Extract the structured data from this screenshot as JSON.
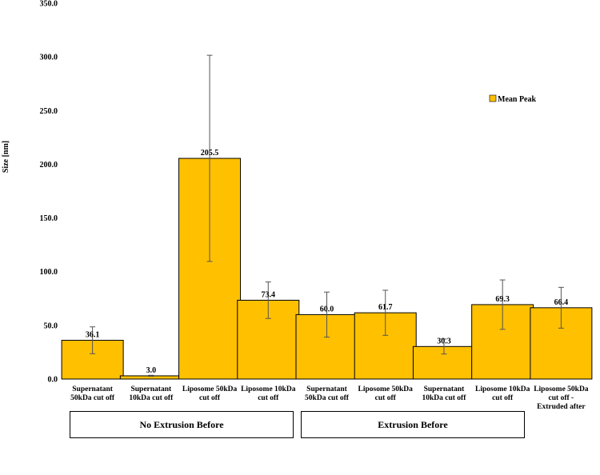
{
  "chart_data": {
    "type": "bar",
    "ylabel": "Size [nm]",
    "ylim": [
      0,
      350
    ],
    "yticks": [
      "0.0",
      "50.0",
      "100.0",
      "150.0",
      "200.0",
      "250.0",
      "300.0",
      "350.0"
    ],
    "categories": [
      [
        "Supernatant",
        "50kDa cut off"
      ],
      [
        "Supernatant",
        "10kDa cut off"
      ],
      [
        "Liposome 50kDa",
        "cut off"
      ],
      [
        "Liposome 10kDa",
        "cut off"
      ],
      [
        "Supernatant",
        "50kDa cut off"
      ],
      [
        "Liposome 50kDa",
        "cut off"
      ],
      [
        "Supernatant",
        "10kDa cut off"
      ],
      [
        "Liposome 10kDa",
        "cut off"
      ],
      [
        "Liposome 50kDa",
        "cut off -",
        "Extruded after"
      ]
    ],
    "series": [
      {
        "name": "Mean Peak",
        "color": "#FFC000",
        "values": [
          36.1,
          3.0,
          205.5,
          73.4,
          60.0,
          61.7,
          30.3,
          69.3,
          66.4
        ],
        "labels": [
          "36.1",
          "3.0",
          "205.5",
          "73.4",
          "60.0",
          "61.7",
          "30.3",
          "69.3",
          "66.4"
        ],
        "error": [
          12.5,
          0.5,
          96,
          17,
          21,
          21,
          7,
          23,
          19
        ]
      }
    ],
    "legend_position": "right",
    "grid": false,
    "groups": [
      {
        "label": "No Extrusion Before"
      },
      {
        "label": "Extrusion Before"
      }
    ]
  }
}
